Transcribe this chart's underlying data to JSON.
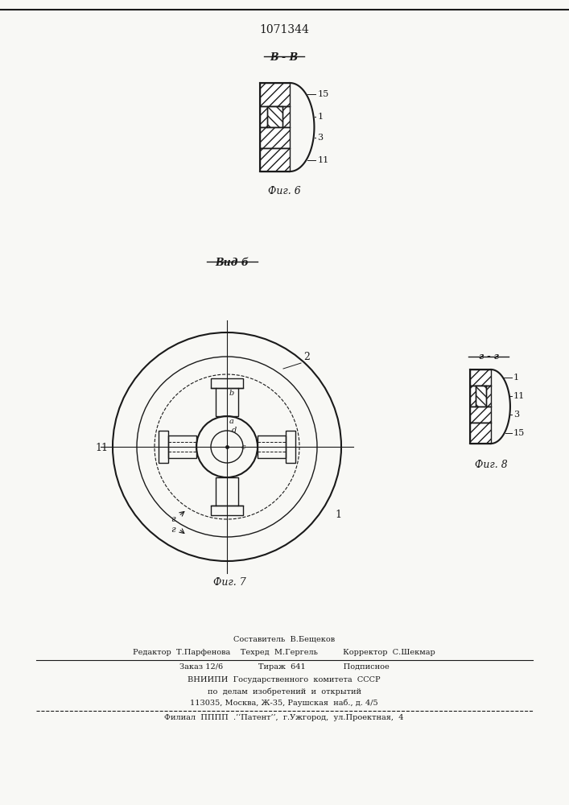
{
  "patent_number": "1071344",
  "bg_color": "#f8f8f5",
  "line_color": "#1a1a1a",
  "fig6_label": "Фиг. 6",
  "fig8_label": "Фиг. 8",
  "section_bb": "B - B",
  "view_b": "Вид б",
  "section_gg": "г - г",
  "footer_line1": "Составитель  В.Бещеков",
  "footer_line2": "Редактор  Т.Парфенова    Техред  М.Гергель          Корректор  С.Шекмар",
  "footer_line3": "Заказ 12/6              Тираж  641               Подписное",
  "footer_line4": "ВНИИПИ  Государственного  комитета  СССР",
  "footer_line5": "по  делам  изобретений  и  открытий",
  "footer_line6": "113035, Москва, Ж-35, Раушская  наб., д. 4/5",
  "footer_line7": "Филиал  ПППП  .’‘Патент’’,  г.Ужгород,  ул.Проектная,  4"
}
